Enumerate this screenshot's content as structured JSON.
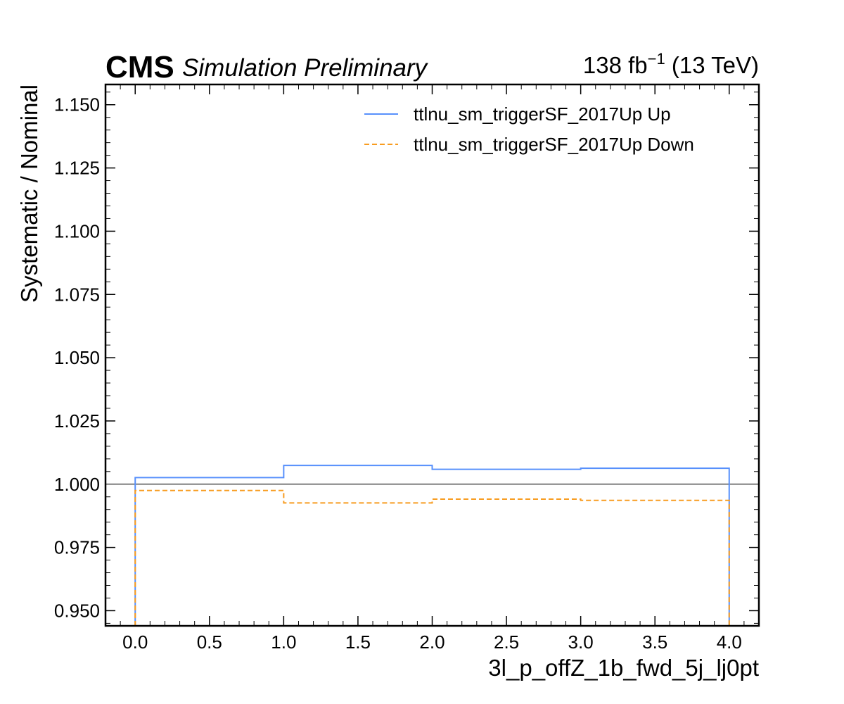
{
  "chart_data": {
    "type": "line",
    "step": true,
    "experiment": "CMS",
    "status": "Simulation Preliminary",
    "lumi_value": "138 fb",
    "lumi_exponent": "−1",
    "energy": " (13 TeV)",
    "xlabel": "3l_p_offZ_1b_fwd_5j_lj0pt",
    "ylabel": "Systematic / Nominal",
    "xlim": [
      -0.2,
      4.2
    ],
    "ylim": [
      0.944,
      1.158
    ],
    "x_ticks": [
      0.0,
      0.5,
      1.0,
      1.5,
      2.0,
      2.5,
      3.0,
      3.5,
      4.0
    ],
    "x_tick_labels": [
      "0.0",
      "0.5",
      "1.0",
      "1.5",
      "2.0",
      "2.5",
      "3.0",
      "3.5",
      "4.0"
    ],
    "y_ticks": [
      0.95,
      0.975,
      1.0,
      1.025,
      1.05,
      1.075,
      1.1,
      1.125,
      1.15
    ],
    "y_tick_labels": [
      "0.950",
      "0.975",
      "1.000",
      "1.025",
      "1.050",
      "1.075",
      "1.100",
      "1.125",
      "1.150"
    ],
    "reference_line": 1.0,
    "bin_edges": [
      0,
      1,
      2,
      3,
      4
    ],
    "legend_position": "top-right",
    "series": [
      {
        "name": "ttlnu_sm_triggerSF_2017Up Up",
        "values": [
          1.0026,
          1.0074,
          1.0059,
          1.0063
        ],
        "color": "#5790fc",
        "dash": "solid"
      },
      {
        "name": "ttlnu_sm_triggerSF_2017Up Down",
        "values": [
          0.9975,
          0.9926,
          0.9941,
          0.9936
        ],
        "color": "#f89c20",
        "dash": "dashed"
      }
    ],
    "reference_color": "#808080"
  }
}
